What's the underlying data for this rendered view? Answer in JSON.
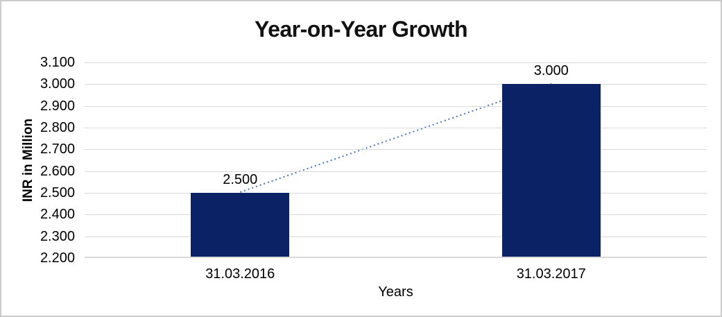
{
  "window": {
    "background": "#ffffff",
    "border_color": "#cbcbcb"
  },
  "chart_data": {
    "type": "bar",
    "title": "Year-on-Year Growth",
    "xlabel": "Years",
    "ylabel": "INR in Million",
    "categories": [
      "31.03.2016",
      "31.03.2017"
    ],
    "values": [
      2500,
      3000
    ],
    "value_labels": [
      "2.500",
      "3.000"
    ],
    "ylim": [
      2200,
      3100
    ],
    "ytick_step": 100,
    "ytick_labels": [
      "3.100",
      "3.000",
      "2.900",
      "2.800",
      "2.700",
      "2.600",
      "2.500",
      "2.400",
      "2.300",
      "2.200"
    ],
    "grid": true,
    "legend": false,
    "trendline": {
      "type": "linear",
      "style": "dotted",
      "connects": [
        "2.500",
        "3.000"
      ]
    },
    "colors": {
      "bar": "#0b2265",
      "trendline": "#4472c4",
      "gridline": "#d9d9d9",
      "axis_line": "#d9d9d9",
      "text": "#000000"
    }
  }
}
